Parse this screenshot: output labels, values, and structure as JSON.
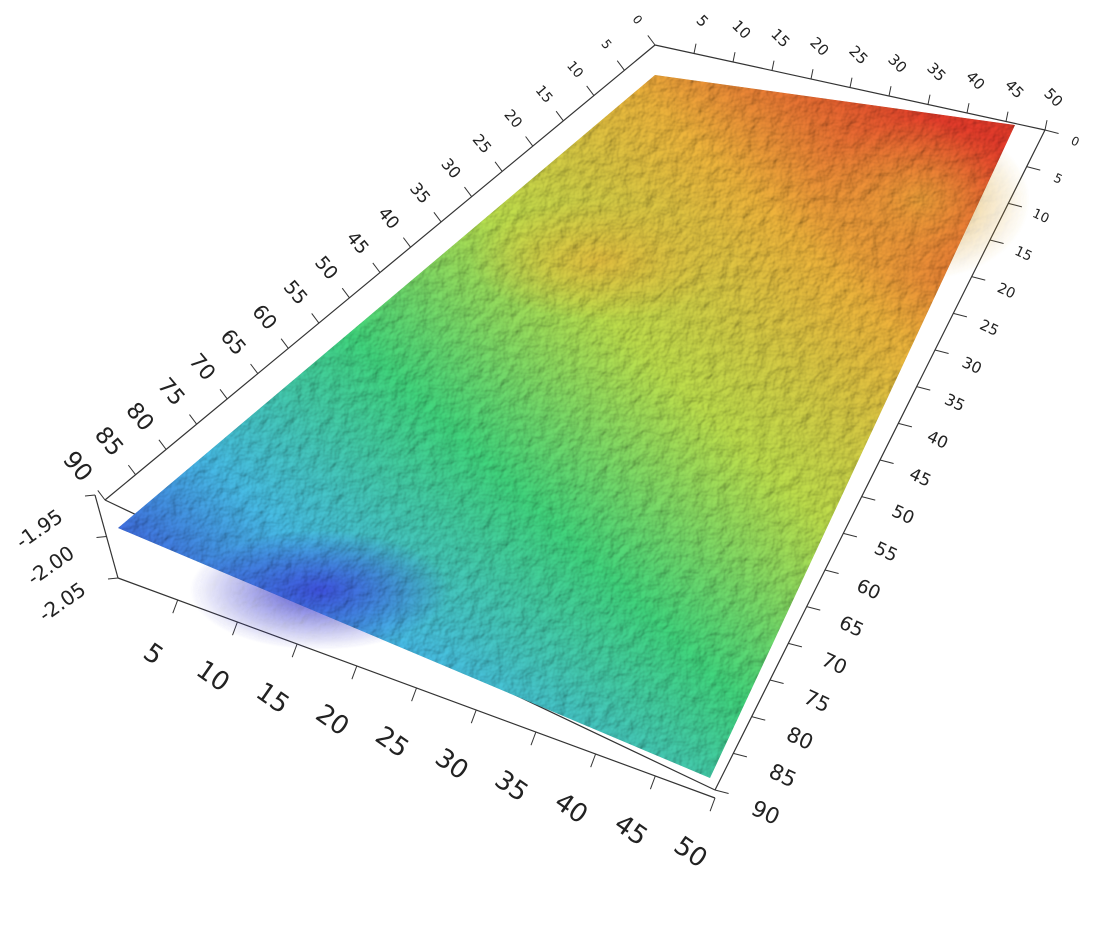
{
  "chart_data": {
    "type": "surface",
    "xticks": [
      5,
      10,
      15,
      20,
      25,
      30,
      35,
      40,
      45,
      50
    ],
    "xlim": [
      0,
      50
    ],
    "yticks": [
      0,
      5,
      10,
      15,
      20,
      25,
      30,
      35,
      40,
      45,
      50,
      55,
      60,
      65,
      70,
      75,
      80,
      85,
      90
    ],
    "ylim": [
      0,
      90
    ],
    "zticks": [
      {
        "value": -2.05,
        "label": "-2.05"
      },
      {
        "value": -2.0,
        "label": "-2.00"
      },
      {
        "value": -1.95,
        "label": "-1.95"
      }
    ],
    "zlim": [
      -2.05,
      -1.95
    ],
    "colormap": [
      "#3a3ad8",
      "#45b8e0",
      "#3fd07a",
      "#b9d94a",
      "#e8b03a",
      "#e03a2a"
    ]
  }
}
